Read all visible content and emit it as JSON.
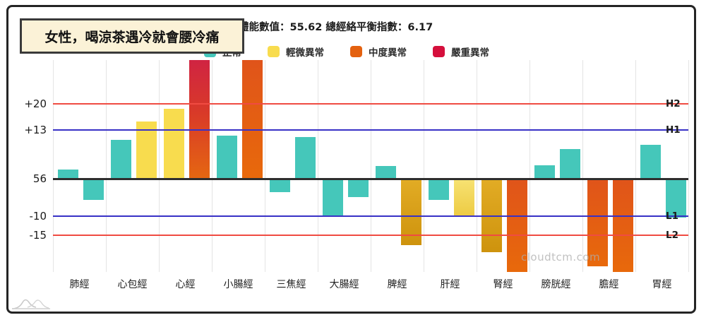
{
  "banner": {
    "text": "女性，喝涼茶遇冷就會腰冷痛"
  },
  "header": {
    "stats_text": "體能數值：55.62 總經絡平衡指數：6.17"
  },
  "legend": [
    {
      "label": "正常",
      "severity": "normal",
      "color": "#45C7BA"
    },
    {
      "label": "輕微異常",
      "severity": "mild",
      "color": "#F8DC4E"
    },
    {
      "label": "中度異常",
      "severity": "moderate",
      "color": "#E4610F"
    },
    {
      "label": "嚴重異常",
      "severity": "severe",
      "color": "#D50F3C"
    }
  ],
  "watermark": "cloudtcm.com",
  "chart_data": {
    "type": "bar",
    "categories": [
      "肺經",
      "心包經",
      "心經",
      "小腸經",
      "三焦經",
      "大腸經",
      "脾經",
      "肝經",
      "腎經",
      "膀胱經",
      "膽經",
      "胃經"
    ],
    "bars": [
      {
        "category": "肺經",
        "values": [
          {
            "value": 2.4,
            "severity": "normal"
          },
          {
            "value": -5.7,
            "severity": "normal"
          }
        ]
      },
      {
        "category": "心包經",
        "values": [
          {
            "value": 10.4,
            "severity": "normal"
          },
          {
            "value": 15.3,
            "severity": "mild"
          }
        ]
      },
      {
        "category": "心經",
        "values": [
          {
            "value": 18.7,
            "severity": "mild"
          },
          {
            "value": 32,
            "severity": "severe",
            "clipped": true
          }
        ]
      },
      {
        "category": "小腸經",
        "values": [
          {
            "value": 11.5,
            "severity": "normal"
          },
          {
            "value": 32,
            "severity": "moderate",
            "clipped": true
          }
        ]
      },
      {
        "category": "三焦經",
        "values": [
          {
            "value": -3.5,
            "severity": "normal"
          },
          {
            "value": 11.1,
            "severity": "normal"
          }
        ]
      },
      {
        "category": "大腸經",
        "values": [
          {
            "value": -9.9,
            "severity": "normal"
          },
          {
            "value": -4.9,
            "severity": "normal"
          }
        ]
      },
      {
        "category": "脾經",
        "values": [
          {
            "value": 3.4,
            "severity": "normal"
          },
          {
            "value": -17.7,
            "severity": "mild_deep"
          }
        ]
      },
      {
        "category": "肝經",
        "values": [
          {
            "value": -5.7,
            "severity": "normal"
          },
          {
            "value": -10.0,
            "severity": "mild_pale"
          }
        ]
      },
      {
        "category": "腎經",
        "values": [
          {
            "value": -19.6,
            "severity": "mild_deep"
          },
          {
            "value": -25.0,
            "severity": "moderate"
          }
        ]
      },
      {
        "category": "膀胱經",
        "values": [
          {
            "value": 3.5,
            "severity": "normal"
          },
          {
            "value": 8.0,
            "severity": "normal"
          }
        ]
      },
      {
        "category": "膽經",
        "values": [
          {
            "value": -23.4,
            "severity": "moderate"
          },
          {
            "value": -25.0,
            "severity": "moderate"
          }
        ]
      },
      {
        "category": "胃經",
        "values": [
          {
            "value": 9.0,
            "severity": "normal"
          },
          {
            "value": -10.3,
            "severity": "normal"
          }
        ]
      }
    ],
    "baseline": {
      "left_label": "56",
      "value": 0
    },
    "threshold_lines": [
      {
        "value": 20,
        "left_label": "+20",
        "right_label": "H2",
        "color": "#F04B42"
      },
      {
        "value": 13,
        "left_label": "+13",
        "right_label": "H1",
        "color": "#3831C6"
      },
      {
        "value": -10,
        "left_label": "-10",
        "right_label": "L1",
        "color": "#3831C6"
      },
      {
        "value": -15,
        "left_label": "-15",
        "right_label": "L2",
        "color": "#F04B42"
      }
    ],
    "ylim": [
      -32,
      32
    ],
    "grid": "vertical-only",
    "legend_position": "top"
  }
}
